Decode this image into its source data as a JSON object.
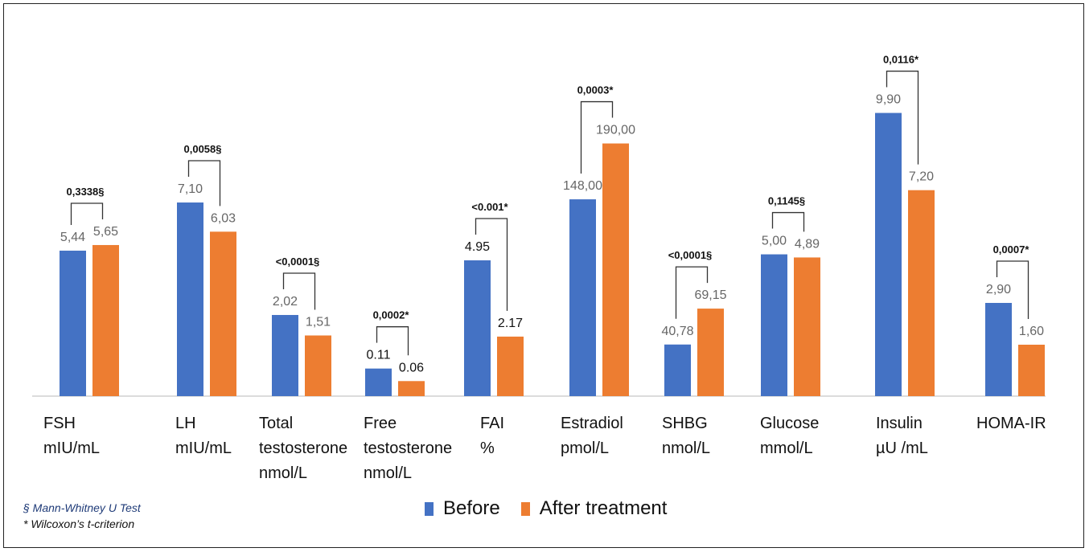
{
  "chart_data": {
    "type": "bar",
    "categories": [
      [
        "FSH",
        "mIU/mL"
      ],
      [
        "LH",
        "mIU/mL"
      ],
      [
        "Total",
        "testosterone",
        "nmol/L"
      ],
      [
        "Free",
        "testosterone",
        "nmol/L"
      ],
      [
        "FAI",
        "%"
      ],
      [
        "Estradiol",
        "pmol/L"
      ],
      [
        "SHBG",
        "nmol/L"
      ],
      [
        "Glucose",
        "mmol/L"
      ],
      [
        "Insulin",
        "µU /mL"
      ],
      [
        "HOMA-IR"
      ]
    ],
    "series": [
      {
        "name": "Before",
        "color": "#4472c4",
        "values": [
          5.44,
          7.1,
          2.02,
          0.11,
          4.95,
          148.0,
          40.78,
          5.0,
          9.9,
          2.9
        ],
        "labels": [
          "5,44",
          "7,10",
          "2,02",
          "0.11",
          "4.95",
          "148,00",
          "40,78",
          "5,00",
          "9,90",
          "2,90"
        ]
      },
      {
        "name": "After treatment",
        "color": "#ed7d31",
        "values": [
          5.65,
          6.03,
          1.51,
          0.06,
          2.17,
          190.0,
          69.15,
          4.89,
          7.2,
          1.6
        ],
        "labels": [
          "5,65",
          "6,03",
          "1,51",
          "0.06",
          "2.17",
          "190,00",
          "69,15",
          "4,89",
          "7,20",
          "1,60"
        ]
      }
    ],
    "p_values": [
      "0,3338§",
      "0,0058§",
      "<0,0001§",
      "0,0002*",
      "<0.001*",
      "0,0003*",
      "<0,0001§",
      "0,1145§",
      "0,0116*",
      "0,0007*"
    ],
    "legend_position": "bottom-center",
    "grid": false
  },
  "notes": {
    "mann_whitney": "§ Mann-Whitney U Test",
    "wilcoxon": "* Wilcoxon’s t-criterion"
  }
}
